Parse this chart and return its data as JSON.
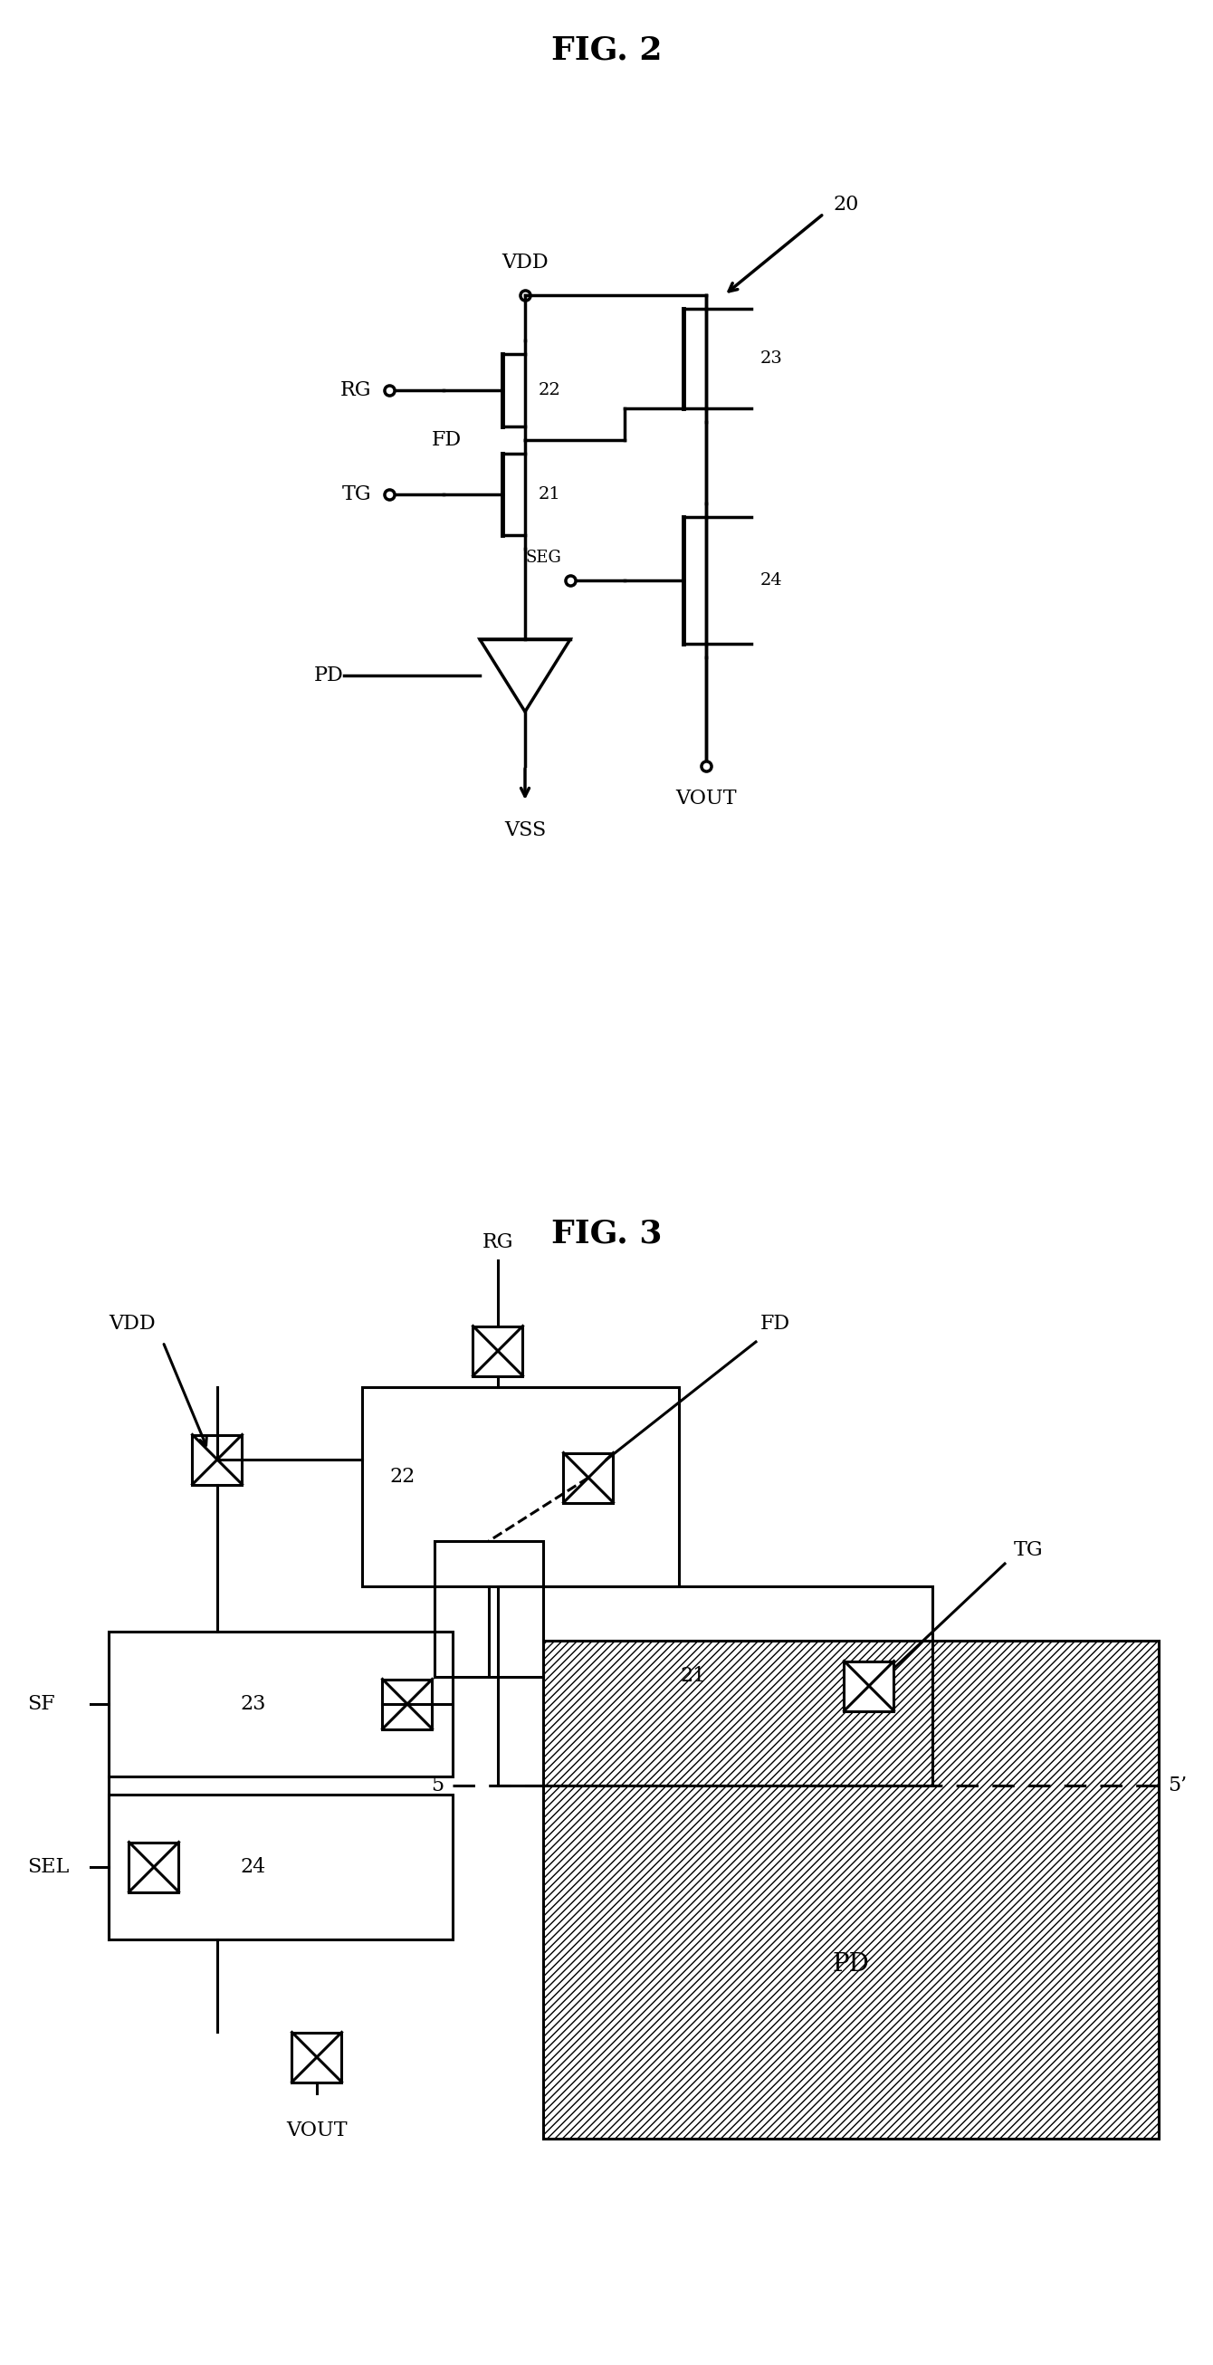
{
  "fig_title1": "FIG. 2",
  "fig_title2": "FIG. 3",
  "bg_color": "#ffffff",
  "line_color": "#000000",
  "label_20": "20",
  "label_21": "21",
  "label_22": "22",
  "label_23": "23",
  "label_24": "24",
  "label_RG": "RG",
  "label_TG": "TG",
  "label_FD": "FD",
  "label_VDD": "VDD",
  "label_VSS": "VSS",
  "label_PD": "PD",
  "label_SEG": "SEG",
  "label_VOUT": "VOUT",
  "label_SF": "SF",
  "label_SEL": "SEL",
  "label_5": "5",
  "label_5p": "5’"
}
